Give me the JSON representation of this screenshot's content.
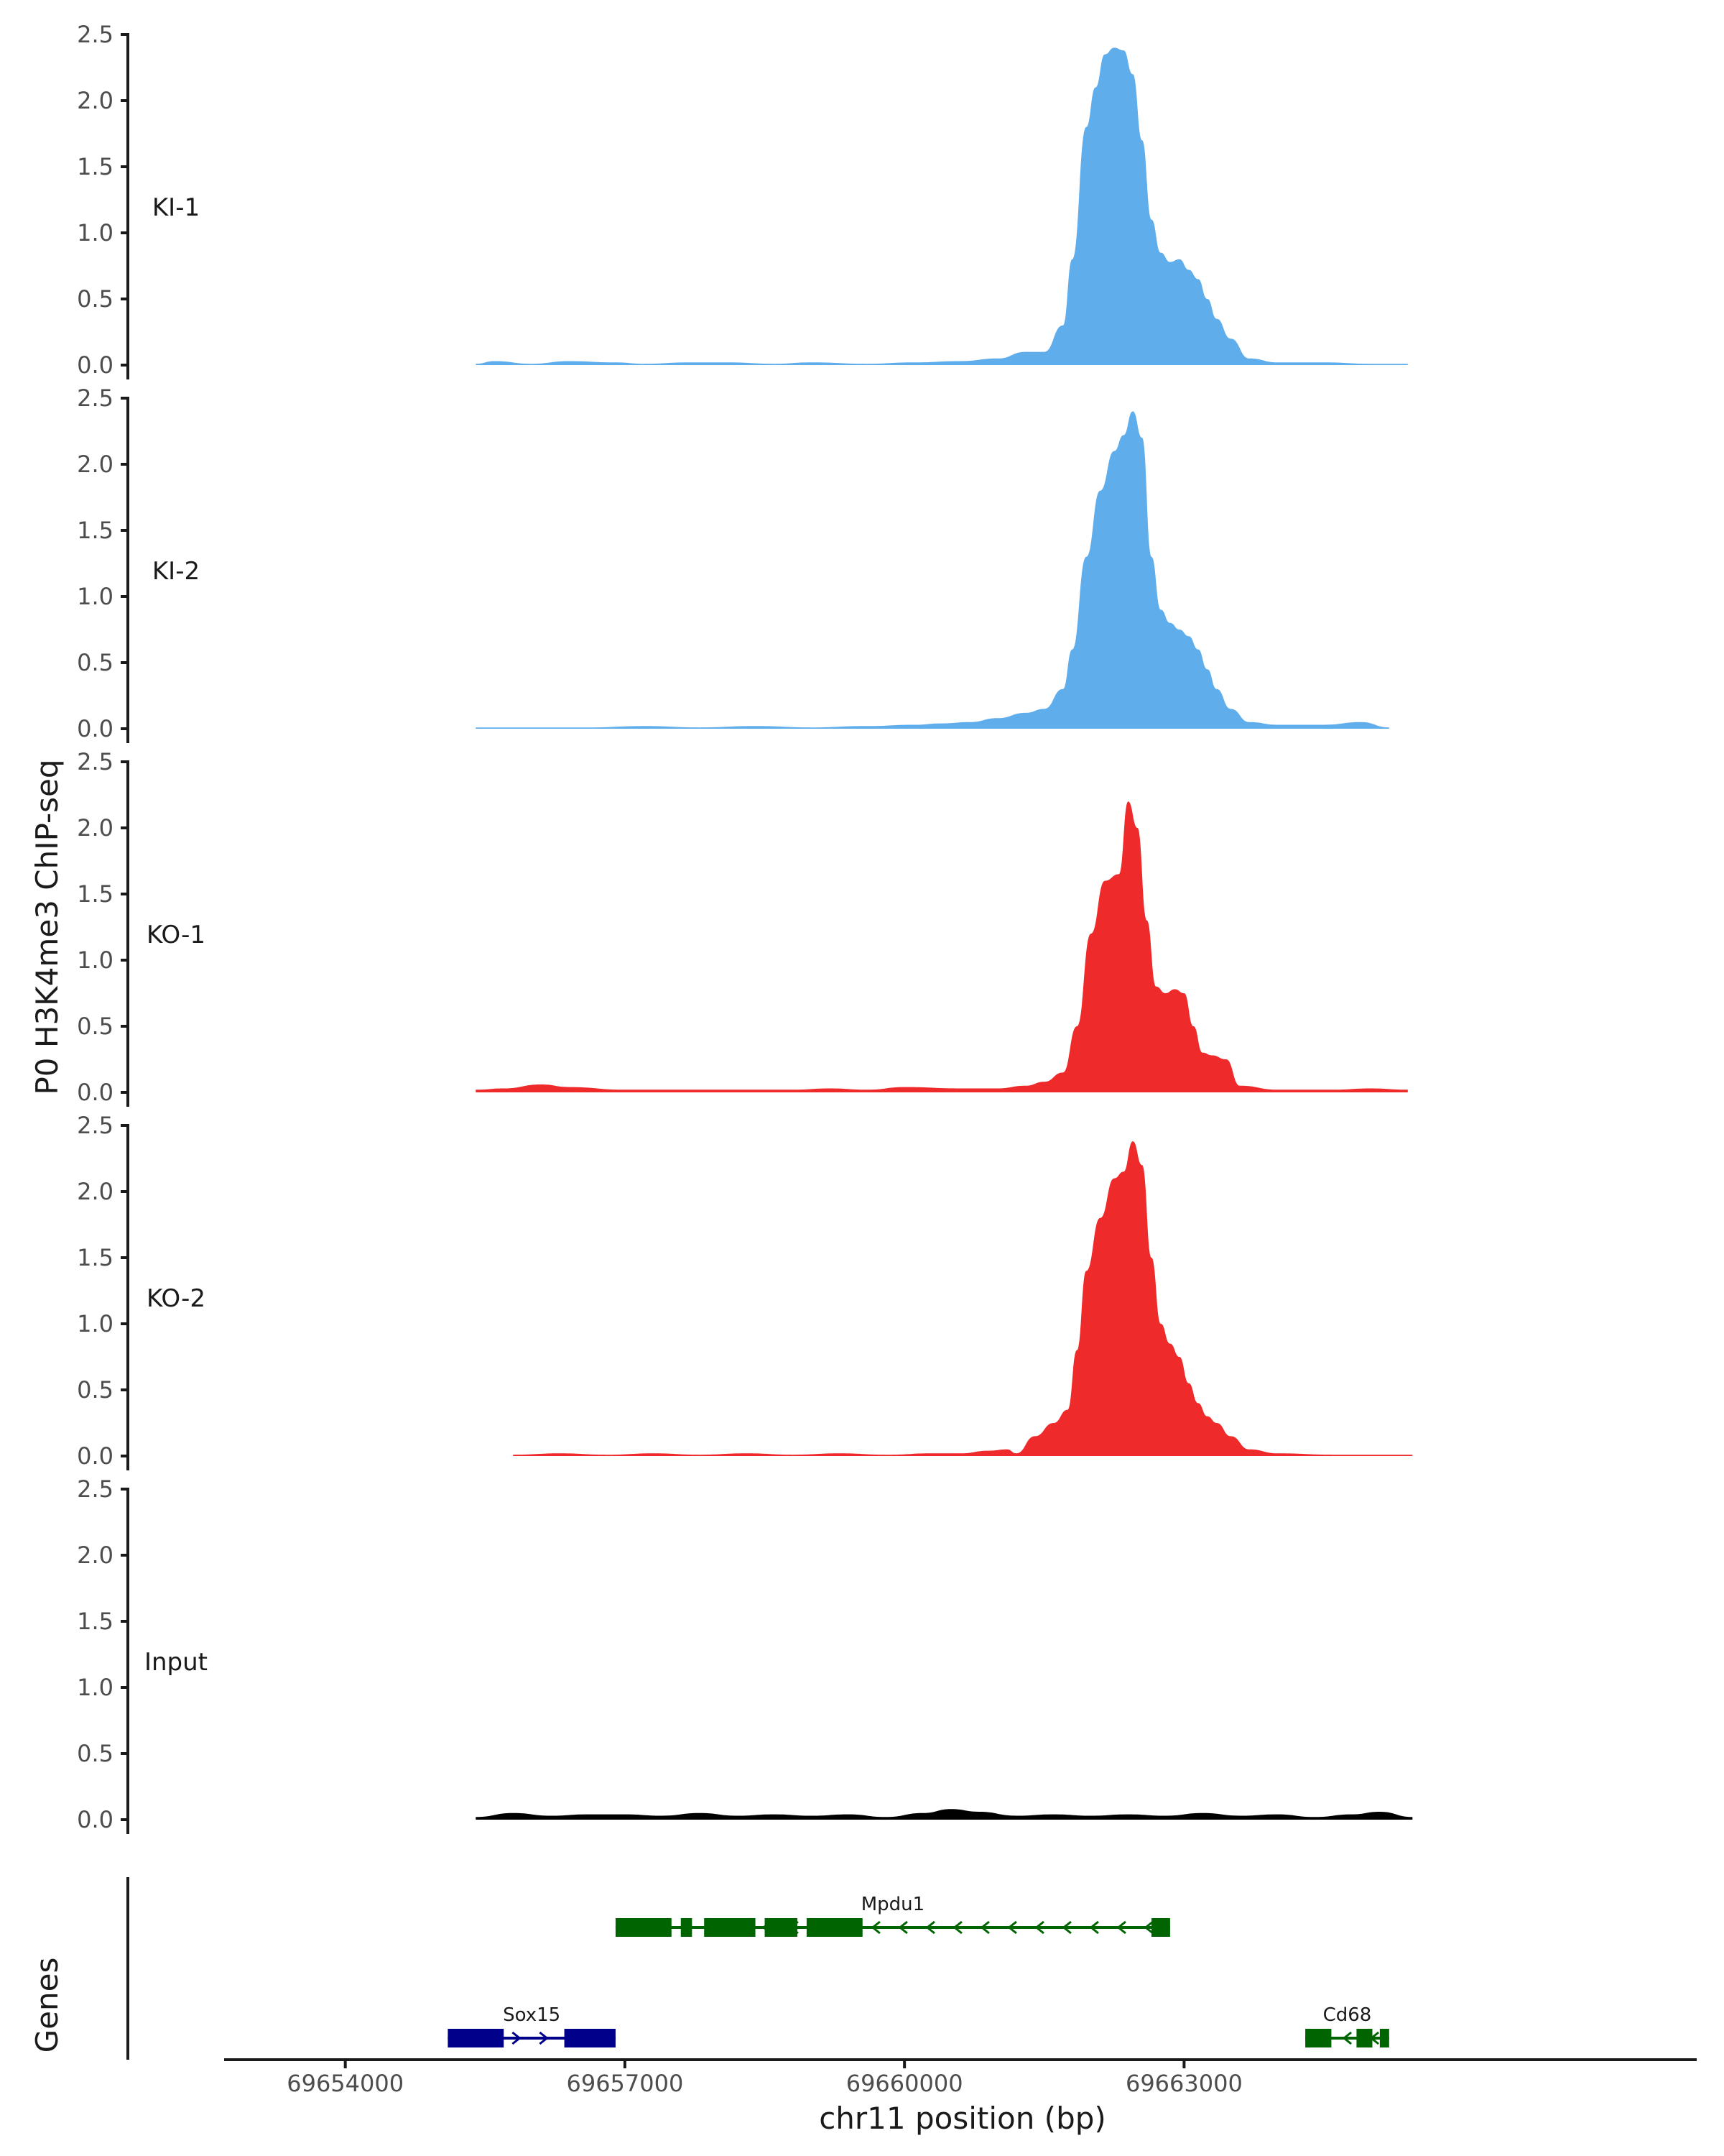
{
  "chart_data": {
    "type": "area",
    "ylabel": "P0 H3K4me3 ChIP-seq",
    "xlabel": "chr11 position (bp)",
    "xlim": [
      69652700,
      69668500
    ],
    "ylim": [
      0,
      2.5
    ],
    "yticks": [
      "0.0",
      "0.5",
      "1.0",
      "1.5",
      "2.0",
      "2.5"
    ],
    "xticks": [
      {
        "value": 69654000,
        "label": "69654000"
      },
      {
        "value": 69657000,
        "label": "69657000"
      },
      {
        "value": 69660000,
        "label": "69660000"
      },
      {
        "value": 69663000,
        "label": "69663000"
      }
    ],
    "tracks": [
      {
        "name": "KI-1",
        "color": "#60adec",
        "x": [
          69655400,
          69655600,
          69656000,
          69656400,
          69656900,
          69657200,
          69657700,
          69658100,
          69658600,
          69659000,
          69659600,
          69660100,
          69660600,
          69661000,
          69661300,
          69661500,
          69661700,
          69661800,
          69661950,
          69662050,
          69662150,
          69662250,
          69662350,
          69662450,
          69662550,
          69662650,
          69662750,
          69662850,
          69662950,
          69663050,
          69663150,
          69663250,
          69663350,
          69663500,
          69663700,
          69664000,
          69664500,
          69665000,
          69665400
        ],
        "values": [
          0.01,
          0.03,
          0.01,
          0.03,
          0.02,
          0.01,
          0.02,
          0.02,
          0.01,
          0.02,
          0.01,
          0.02,
          0.03,
          0.05,
          0.1,
          0.1,
          0.3,
          0.8,
          1.8,
          2.1,
          2.35,
          2.4,
          2.38,
          2.2,
          1.7,
          1.1,
          0.85,
          0.78,
          0.8,
          0.72,
          0.65,
          0.5,
          0.35,
          0.2,
          0.05,
          0.02,
          0.02,
          0.01,
          0.01
        ]
      },
      {
        "name": "KI-2",
        "color": "#60adec",
        "x": [
          69655400,
          69656000,
          69656600,
          69657200,
          69657800,
          69658400,
          69659000,
          69659600,
          69660100,
          69660400,
          69660700,
          69661000,
          69661300,
          69661500,
          69661700,
          69661800,
          69661950,
          69662100,
          69662250,
          69662350,
          69662450,
          69662550,
          69662650,
          69662750,
          69662850,
          69662950,
          69663050,
          69663150,
          69663250,
          69663350,
          69663500,
          69663700,
          69664000,
          69664500,
          69664900,
          69665200
        ],
        "values": [
          0.01,
          0.01,
          0.01,
          0.02,
          0.01,
          0.02,
          0.01,
          0.02,
          0.03,
          0.04,
          0.05,
          0.08,
          0.12,
          0.15,
          0.3,
          0.6,
          1.3,
          1.8,
          2.1,
          2.22,
          2.4,
          2.2,
          1.3,
          0.9,
          0.8,
          0.75,
          0.7,
          0.6,
          0.45,
          0.3,
          0.15,
          0.05,
          0.03,
          0.03,
          0.05,
          0.01
        ]
      },
      {
        "name": "KO-1",
        "color": "#ee2a2b",
        "x": [
          69655400,
          69655700,
          69656100,
          69656400,
          69657000,
          69657600,
          69658000,
          69658800,
          69659200,
          69659600,
          69660000,
          69660600,
          69661000,
          69661300,
          69661500,
          69661700,
          69661850,
          69662000,
          69662150,
          69662300,
          69662400,
          69662500,
          69662600,
          69662700,
          69662800,
          69662900,
          69663000,
          69663100,
          69663200,
          69663300,
          69663450,
          69663600,
          69664000,
          69664600,
          69665000,
          69665400
        ],
        "values": [
          0.02,
          0.03,
          0.06,
          0.04,
          0.02,
          0.02,
          0.02,
          0.02,
          0.03,
          0.02,
          0.04,
          0.03,
          0.03,
          0.05,
          0.08,
          0.15,
          0.5,
          1.2,
          1.6,
          1.65,
          2.2,
          2.0,
          1.3,
          0.8,
          0.75,
          0.78,
          0.75,
          0.5,
          0.3,
          0.28,
          0.25,
          0.05,
          0.02,
          0.02,
          0.03,
          0.02
        ]
      },
      {
        "name": "KO-2",
        "color": "#ee2a2b",
        "x": [
          69655800,
          69656300,
          69656800,
          69657300,
          69657800,
          69658300,
          69658800,
          69659300,
          69659800,
          69660300,
          69660600,
          69660900,
          69661100,
          69661200,
          69661400,
          69661600,
          69661750,
          69661850,
          69661950,
          69662100,
          69662250,
          69662350,
          69662450,
          69662550,
          69662650,
          69662750,
          69662850,
          69662950,
          69663050,
          69663150,
          69663250,
          69663350,
          69663500,
          69663700,
          69664000,
          69664600,
          69665000,
          69665450
        ],
        "values": [
          0.01,
          0.02,
          0.01,
          0.02,
          0.01,
          0.02,
          0.01,
          0.02,
          0.01,
          0.02,
          0.02,
          0.04,
          0.05,
          0.02,
          0.15,
          0.25,
          0.35,
          0.8,
          1.4,
          1.8,
          2.1,
          2.15,
          2.38,
          2.2,
          1.5,
          1.0,
          0.85,
          0.75,
          0.55,
          0.4,
          0.3,
          0.25,
          0.15,
          0.05,
          0.02,
          0.01,
          0.01,
          0.01
        ]
      },
      {
        "name": "Input",
        "color": "#000000",
        "x": [
          69655400,
          69655800,
          69656200,
          69656600,
          69657000,
          69657400,
          69657800,
          69658200,
          69658600,
          69659000,
          69659400,
          69659800,
          69660200,
          69660500,
          69660800,
          69661200,
          69661600,
          69662000,
          69662400,
          69662800,
          69663200,
          69663600,
          69664000,
          69664400,
          69664800,
          69665100,
          69665450
        ],
        "values": [
          0.02,
          0.05,
          0.03,
          0.04,
          0.04,
          0.03,
          0.05,
          0.03,
          0.04,
          0.03,
          0.04,
          0.02,
          0.05,
          0.08,
          0.06,
          0.03,
          0.04,
          0.03,
          0.04,
          0.03,
          0.05,
          0.03,
          0.04,
          0.02,
          0.04,
          0.06,
          0.02
        ]
      }
    ],
    "genes_label": "Genes",
    "genes": [
      {
        "name": "Sox15",
        "color": "#00008b",
        "strand": "+",
        "start": 69655100,
        "end": 69656900,
        "exons": [
          [
            69655100,
            69655700
          ],
          [
            69656350,
            69656900
          ]
        ],
        "row": 2
      },
      {
        "name": "Mpdu1",
        "color": "#006400",
        "strand": "-",
        "start": 69656900,
        "end": 69662850,
        "exons": [
          [
            69656900,
            69657500
          ],
          [
            69657600,
            69657720
          ],
          [
            69657850,
            69658400
          ],
          [
            69658500,
            69658850
          ],
          [
            69658950,
            69659550
          ],
          [
            69662650,
            69662850
          ]
        ],
        "row": 1
      },
      {
        "name": "Cd68",
        "color": "#006400",
        "strand": "-",
        "start": 69664300,
        "end": 69665200,
        "exons": [
          [
            69664300,
            69664580
          ],
          [
            69664850,
            69665020
          ],
          [
            69665100,
            69665200
          ]
        ],
        "row": 2
      }
    ]
  }
}
